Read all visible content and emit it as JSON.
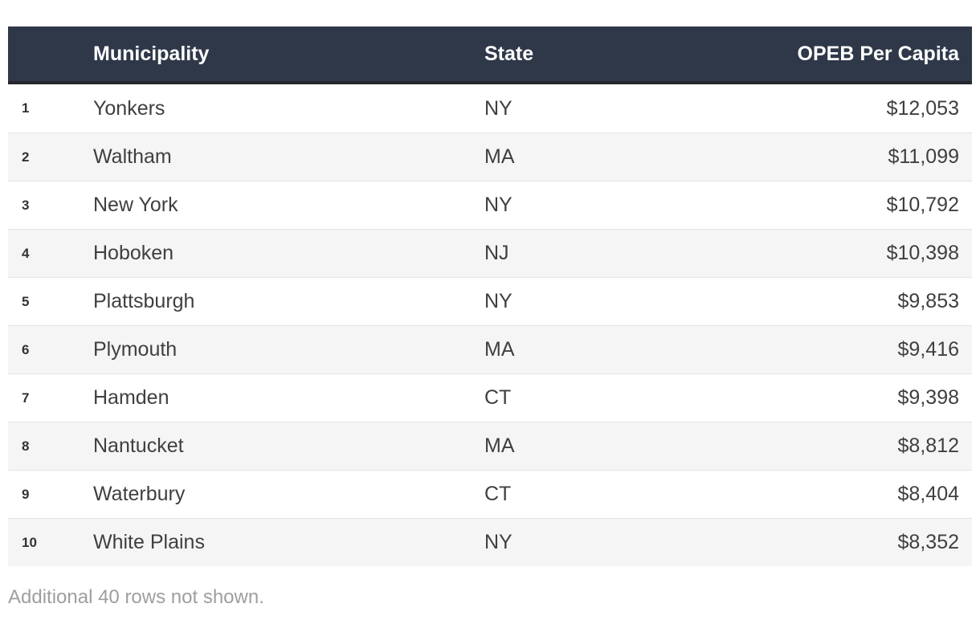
{
  "chart_data": {
    "type": "table",
    "columns": {
      "rank": "",
      "municipality": "Municipality",
      "state": "State",
      "opeb": "OPEB Per Capita"
    },
    "rows": [
      {
        "rank": "1",
        "municipality": "Yonkers",
        "state": "NY",
        "opeb": "$12,053"
      },
      {
        "rank": "2",
        "municipality": "Waltham",
        "state": "MA",
        "opeb": "$11,099"
      },
      {
        "rank": "3",
        "municipality": "New York",
        "state": "NY",
        "opeb": "$10,792"
      },
      {
        "rank": "4",
        "municipality": "Hoboken",
        "state": "NJ",
        "opeb": "$10,398"
      },
      {
        "rank": "5",
        "municipality": "Plattsburgh",
        "state": "NY",
        "opeb": "$9,853"
      },
      {
        "rank": "6",
        "municipality": "Plymouth",
        "state": "MA",
        "opeb": "$9,416"
      },
      {
        "rank": "7",
        "municipality": "Hamden",
        "state": "CT",
        "opeb": "$9,398"
      },
      {
        "rank": "8",
        "municipality": "Nantucket",
        "state": "MA",
        "opeb": "$8,812"
      },
      {
        "rank": "9",
        "municipality": "Waterbury",
        "state": "CT",
        "opeb": "$8,404"
      },
      {
        "rank": "10",
        "municipality": "White Plains",
        "state": "NY",
        "opeb": "$8,352"
      }
    ],
    "footer_note": "Additional 40 rows not shown."
  },
  "colors": {
    "header_bg": "#2f3849",
    "header_text": "#ffffff",
    "header_border": "#26272c",
    "row_alt_bg": "#f5f5f5",
    "row_divider": "#e3e3e3",
    "body_text": "#3f3f3f",
    "rank_text": "#333333",
    "footer_text": "#9e9e9e"
  }
}
